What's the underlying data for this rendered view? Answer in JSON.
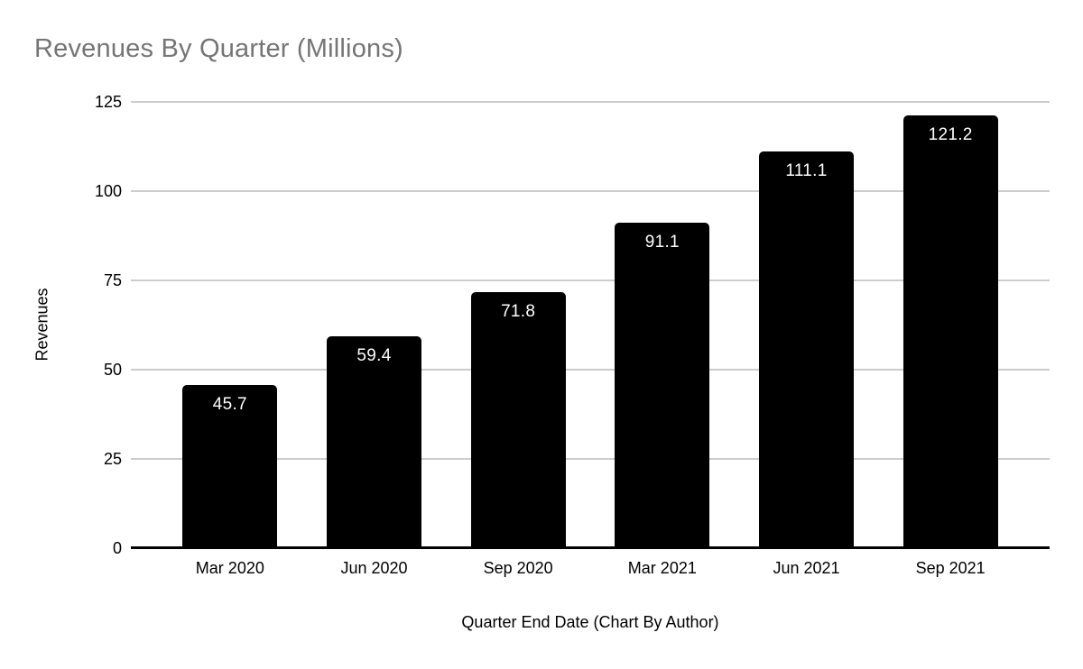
{
  "title": "Revenues By Quarter (Millions)",
  "chart_data": {
    "type": "bar",
    "title": "Revenues By Quarter (Millions)",
    "categories": [
      "Mar 2020",
      "Jun 2020",
      "Sep 2020",
      "Mar 2021",
      "Jun 2021",
      "Sep 2021"
    ],
    "values": [
      45.7,
      59.4,
      71.8,
      91.1,
      111.1,
      121.2
    ],
    "value_labels": [
      "45.7",
      "59.4",
      "71.8",
      "91.1",
      "111.1",
      "121.2"
    ],
    "xlabel": "Quarter End Date (Chart By Author)",
    "ylabel": "Revenues",
    "ylim": [
      0,
      125
    ],
    "yticks": [
      0,
      25,
      50,
      75,
      100,
      125
    ],
    "ytick_labels": [
      "0",
      "25",
      "50",
      "75",
      "100",
      "125"
    ],
    "grid": true,
    "legend": false,
    "colors": {
      "bar": "#000000",
      "bar_label": "#ffffff",
      "title": "#757575",
      "gridline": "#cccccc",
      "axis_line": "#000000",
      "axis_text": "#000000",
      "background": "#ffffff"
    }
  }
}
